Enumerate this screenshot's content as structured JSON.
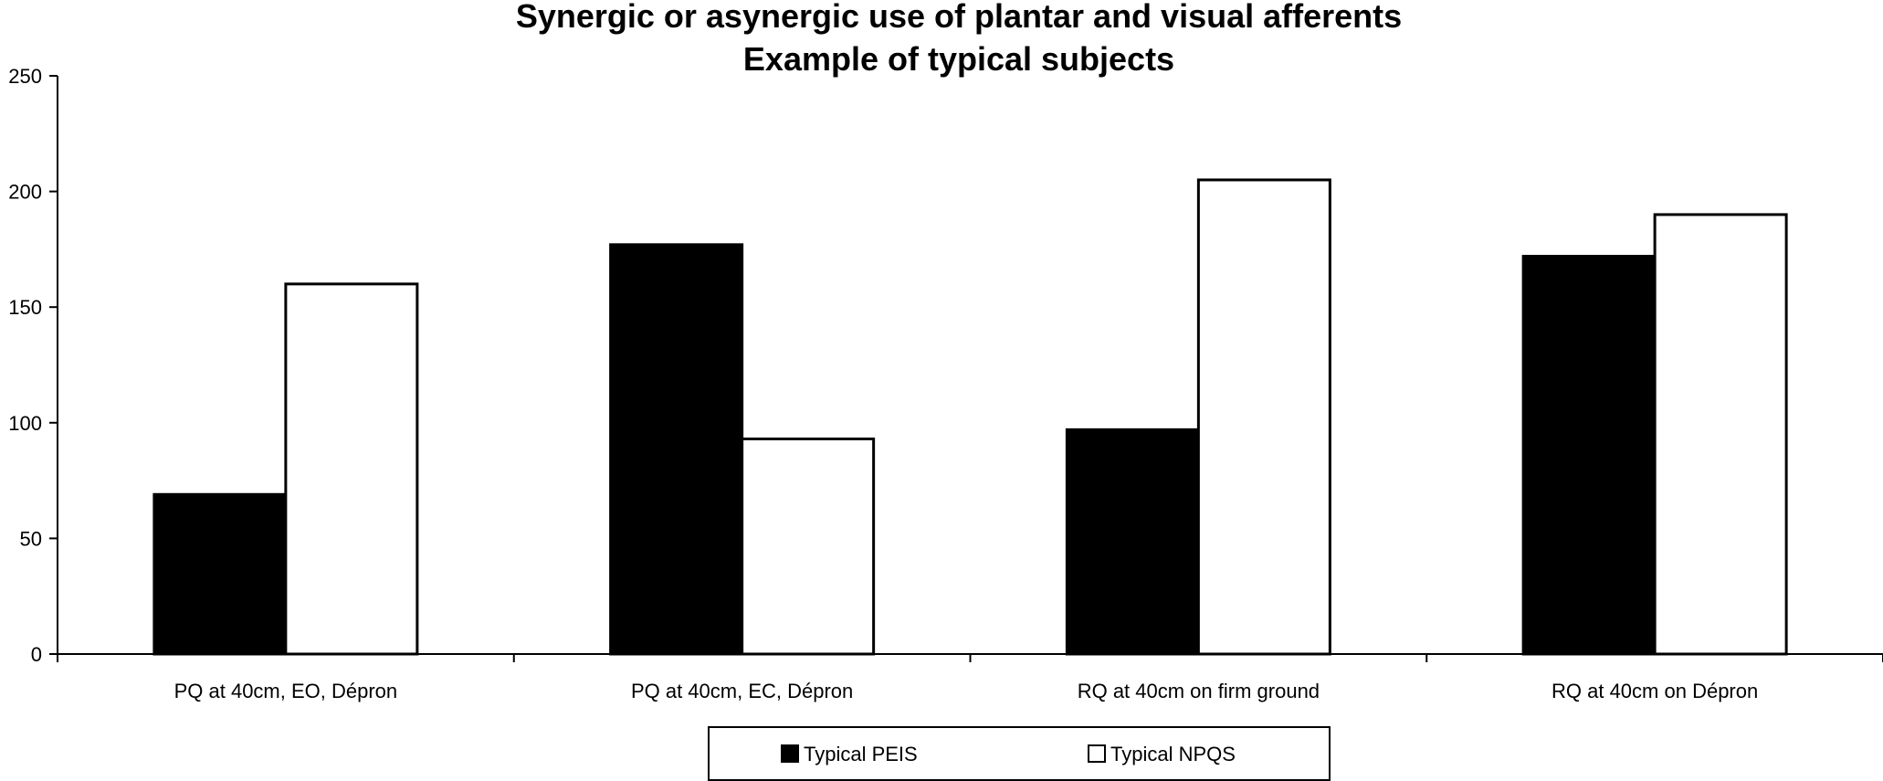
{
  "chart_data": {
    "type": "bar",
    "title": "Synergic or asynergic use of plantar and visual afferents",
    "subtitle": "Example of typical subjects",
    "xlabel": "",
    "ylabel": "",
    "categories": [
      "PQ at 40cm, EO, Dépron",
      "PQ at 40cm, EC, Dépron",
      "RQ at 40cm on firm ground",
      "RQ at 40cm on Dépron"
    ],
    "series": [
      {
        "name": "Typical PEIS",
        "values": [
          69,
          177,
          97,
          172
        ],
        "color": "#000000"
      },
      {
        "name": "Typical NPQS",
        "values": [
          160,
          93,
          205,
          190
        ],
        "color": "#ffffff"
      }
    ],
    "ylim": [
      0,
      250
    ],
    "yticks": [
      0,
      50,
      100,
      150,
      200,
      250
    ],
    "grid": false,
    "legend_position": "bottom-center"
  }
}
